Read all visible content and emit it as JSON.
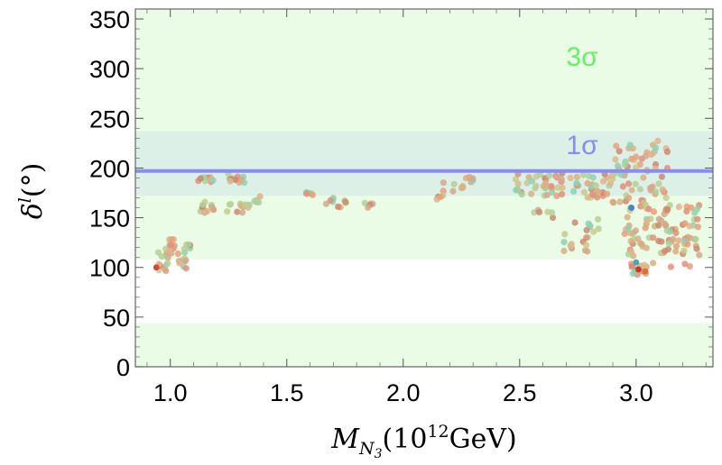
{
  "chart_data": {
    "type": "scatter",
    "title": "",
    "xlabel": "M_{N3}(10^{12}GeV)",
    "ylabel": "δ^l(°)",
    "xlim": [
      0.85,
      3.33
    ],
    "ylim": [
      0,
      360
    ],
    "x_ticks": [
      1.0,
      1.5,
      2.0,
      2.5,
      3.0
    ],
    "x_tick_labels": [
      "1.0",
      "1.5",
      "2.0",
      "2.5",
      "3.0"
    ],
    "y_ticks": [
      0,
      50,
      100,
      150,
      200,
      250,
      300,
      350
    ],
    "y_tick_labels": [
      "0",
      "50",
      "100",
      "150",
      "200",
      "250",
      "300",
      "350"
    ],
    "grid": false,
    "bands": [
      {
        "name": "3σ",
        "ranges": [
          [
            0,
            44
          ],
          [
            108,
            360
          ]
        ],
        "color": "#eafbe6"
      },
      {
        "name": "1σ",
        "ranges": [
          [
            172,
            237
          ]
        ],
        "color": "#dcf0e8"
      }
    ],
    "best_fit_line": {
      "label": "1σ",
      "y": 197,
      "color": "#8a8cf0"
    },
    "annotations": [
      {
        "text": "3σ",
        "x": 2.7,
        "y": 303,
        "color": "#66f066"
      },
      {
        "text": "1σ",
        "x": 2.7,
        "y": 214,
        "color": "#8a8cf0"
      }
    ],
    "clusters": [
      {
        "x": [
          0.94,
          0.99
        ],
        "y": [
          92,
          118
        ],
        "n": 14
      },
      {
        "x": [
          0.98,
          1.02
        ],
        "y": [
          112,
          135
        ],
        "n": 12
      },
      {
        "x": [
          1.03,
          1.07
        ],
        "y": [
          95,
          115
        ],
        "n": 10
      },
      {
        "x": [
          1.06,
          1.09
        ],
        "y": [
          116,
          124
        ],
        "n": 5
      },
      {
        "x": [
          1.12,
          1.2
        ],
        "y": [
          185,
          193
        ],
        "n": 10
      },
      {
        "x": [
          1.12,
          1.2
        ],
        "y": [
          155,
          166
        ],
        "n": 12
      },
      {
        "x": [
          1.22,
          1.32
        ],
        "y": [
          185,
          195
        ],
        "n": 12
      },
      {
        "x": [
          1.22,
          1.34
        ],
        "y": [
          155,
          165
        ],
        "n": 12
      },
      {
        "x": [
          1.36,
          1.4
        ],
        "y": [
          165,
          172
        ],
        "n": 5
      },
      {
        "x": [
          1.58,
          1.62
        ],
        "y": [
          170,
          177
        ],
        "n": 5
      },
      {
        "x": [
          1.66,
          1.7
        ],
        "y": [
          162,
          172
        ],
        "n": 5
      },
      {
        "x": [
          1.72,
          1.76
        ],
        "y": [
          160,
          170
        ],
        "n": 5
      },
      {
        "x": [
          1.83,
          1.87
        ],
        "y": [
          160,
          166
        ],
        "n": 5
      },
      {
        "x": [
          2.14,
          2.22
        ],
        "y": [
          168,
          188
        ],
        "n": 8
      },
      {
        "x": [
          2.25,
          2.32
        ],
        "y": [
          178,
          192
        ],
        "n": 8
      },
      {
        "x": [
          2.48,
          2.9
        ],
        "y": [
          170,
          195
        ],
        "n": 70
      },
      {
        "x": [
          2.55,
          2.65
        ],
        "y": [
          150,
          158
        ],
        "n": 6
      },
      {
        "x": [
          2.72,
          2.85
        ],
        "y": [
          135,
          150
        ],
        "n": 8
      },
      {
        "x": [
          2.68,
          2.8
        ],
        "y": [
          115,
          135
        ],
        "n": 12
      },
      {
        "x": [
          2.9,
          3.15
        ],
        "y": [
          165,
          230
        ],
        "n": 60
      },
      {
        "x": [
          2.95,
          3.28
        ],
        "y": [
          100,
          165
        ],
        "n": 100
      },
      {
        "x": [
          2.98,
          3.06
        ],
        "y": [
          92,
          106
        ],
        "n": 10
      }
    ]
  }
}
